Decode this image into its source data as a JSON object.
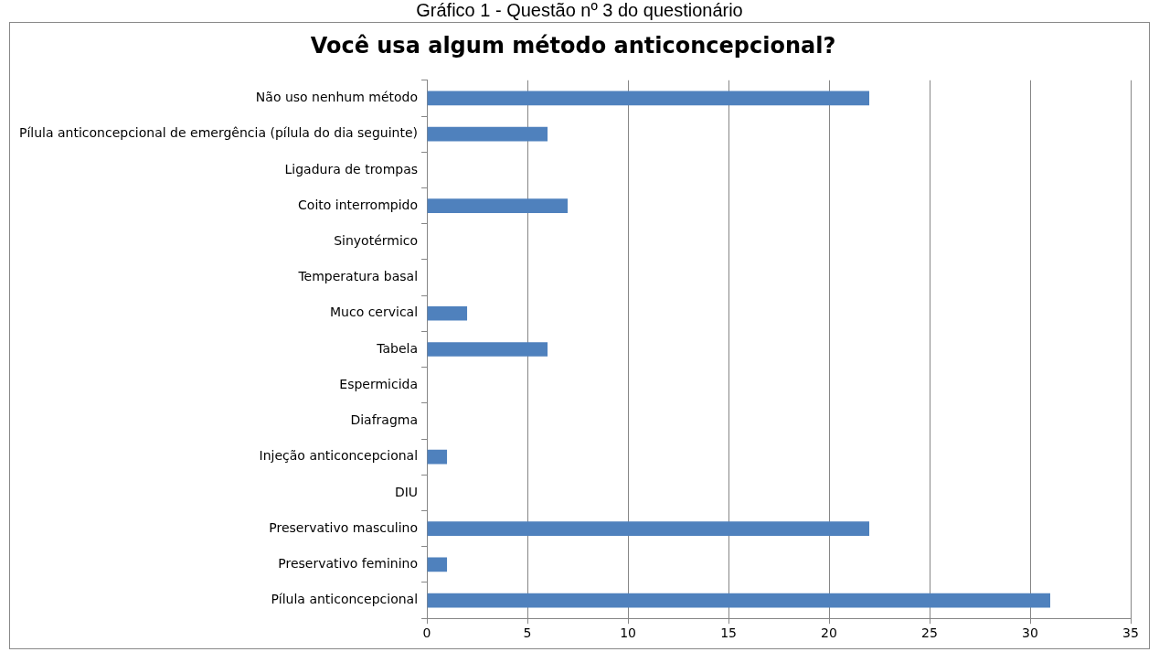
{
  "chart_data": {
    "type": "bar",
    "orientation": "horizontal",
    "title": "Você usa algum método anticoncepcional?",
    "annotations": [
      "Gráfico 1 - Questão nº 3 do questionário"
    ],
    "categories": [
      "Não uso nenhum método",
      "Pílula anticoncepcional de emergência (pílula do dia seguinte)",
      "Ligadura de trompas",
      "Coito interrompido",
      "Sinyotérmico",
      "Temperatura basal",
      "Muco cervical",
      "Tabela",
      "Espermicida",
      "Diafragma",
      "Injeção anticoncepcional",
      "DIU",
      "Preservativo masculino",
      "Preservativo feminino",
      "Pílula anticoncepcional"
    ],
    "values": [
      22,
      6,
      0,
      7,
      0,
      0,
      2,
      6,
      0,
      0,
      1,
      0,
      22,
      1,
      31
    ],
    "color": "#4f81bd",
    "xlim": [
      0,
      35
    ],
    "xticks": [
      0,
      5,
      10,
      15,
      20,
      25,
      30,
      35
    ],
    "grid": "x",
    "legend": false
  }
}
